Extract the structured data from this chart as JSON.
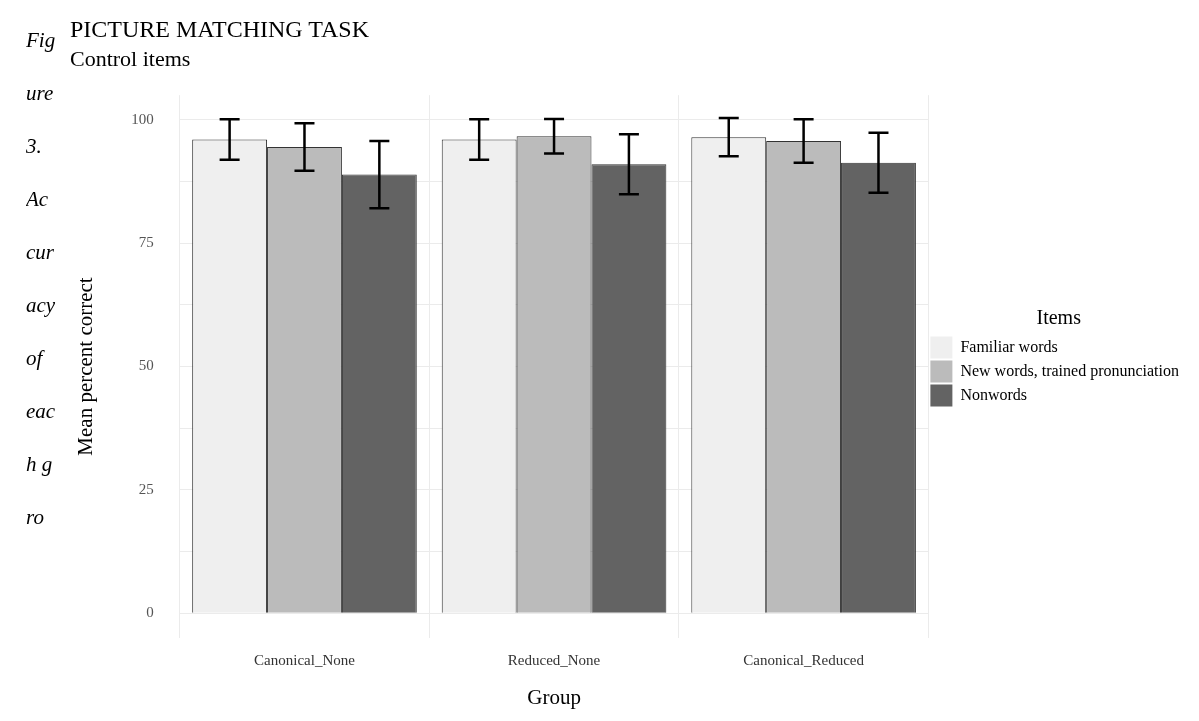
{
  "chart_data": {
    "type": "bar",
    "title": "PICTURE MATCHING TASK",
    "subtitle": "Control items",
    "xlabel": "Group",
    "ylabel": "Mean percent correct",
    "legend_title": "Items",
    "categories": [
      "Canonical_None",
      "Reduced_None",
      "Canonical_Reduced"
    ],
    "series": [
      {
        "name": "Familiar words",
        "color": "#efefef",
        "values": [
          96.0,
          96.0,
          96.5
        ],
        "errors": [
          4.1,
          4.1,
          3.9
        ]
      },
      {
        "name": "New words, trained pronunciation",
        "color": "#bbbbbb",
        "values": [
          94.5,
          96.7,
          95.7
        ],
        "errors": [
          4.8,
          3.5,
          4.4
        ]
      },
      {
        "name": "Nonwords",
        "color": "#636363",
        "values": [
          88.9,
          91.0,
          91.3
        ],
        "errors": [
          6.8,
          6.1,
          6.1
        ]
      }
    ],
    "ylim": [
      -5,
      105
    ],
    "yticks": [
      0,
      {
        "value": 12.5,
        "label": null
      },
      25,
      {
        "value": 37.5,
        "label": null
      },
      50,
      {
        "value": 62.5,
        "label": null
      },
      75,
      {
        "value": 87.5,
        "label": null
      },
      100
    ],
    "grid": true,
    "legend": "right",
    "annotations": [
      "Figure 3. Accuracy of each gro"
    ]
  }
}
